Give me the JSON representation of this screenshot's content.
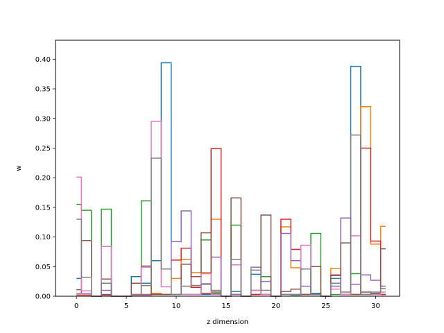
{
  "chart_data": {
    "type": "line",
    "drawstyle": "steps-mid",
    "xlabel": "z dimension",
    "ylabel": "w",
    "xlim": [
      -2.1,
      32.4
    ],
    "ylim": [
      0,
      0.432
    ],
    "xticks": [
      0,
      5,
      10,
      15,
      20,
      25,
      30
    ],
    "yticks": [
      0.0,
      0.05,
      0.1,
      0.15,
      0.2,
      0.25,
      0.3,
      0.35,
      0.4
    ],
    "ytick_labels": [
      "0.00",
      "0.05",
      "0.10",
      "0.15",
      "0.20",
      "0.25",
      "0.30",
      "0.35",
      "0.40"
    ],
    "x": [
      0,
      1,
      2,
      3,
      4,
      5,
      6,
      7,
      8,
      9,
      10,
      11,
      12,
      13,
      14,
      15,
      16,
      17,
      18,
      19,
      20,
      21,
      22,
      23,
      24,
      25,
      26,
      27,
      28,
      29,
      30,
      31
    ],
    "series": [
      {
        "color": "#1f77b4",
        "values": [
          0.03,
          0.005,
          0,
          0.003,
          0,
          0,
          0.033,
          0.022,
          0.06,
          0.394,
          0.003,
          0.003,
          0.003,
          0.003,
          0.003,
          0,
          0.008,
          0,
          0.037,
          0.003,
          0,
          0.003,
          0.002,
          0.003,
          0.005,
          0,
          0.03,
          0.003,
          0.388,
          0.003,
          0.003,
          0.003
        ]
      },
      {
        "color": "#ff7f0e",
        "values": [
          0.002,
          0.002,
          0,
          0.002,
          0,
          0,
          0.003,
          0.003,
          0.005,
          0.003,
          0.03,
          0.062,
          0.04,
          0.04,
          0.13,
          0,
          0.003,
          0,
          0.003,
          0.003,
          0,
          0.117,
          0.048,
          0.003,
          0.003,
          0,
          0.047,
          0.003,
          0.003,
          0.32,
          0.088,
          0.118
        ]
      },
      {
        "color": "#2ca02c",
        "values": [
          0.155,
          0.145,
          0,
          0.147,
          0,
          0,
          0.002,
          0.161,
          0.003,
          0.003,
          0.003,
          0.003,
          0.003,
          0.095,
          0.005,
          0,
          0.12,
          0,
          0.003,
          0.033,
          0,
          0.003,
          0.003,
          0.003,
          0.106,
          0,
          0.003,
          0.003,
          0.038,
          0.003,
          0.003,
          0.003
        ]
      },
      {
        "color": "#d62728",
        "values": [
          0.002,
          0.002,
          0,
          0.002,
          0,
          0,
          0.002,
          0.002,
          0.003,
          0.003,
          0.061,
          0.081,
          0.015,
          0.005,
          0.249,
          0,
          0.003,
          0,
          0.003,
          0.003,
          0,
          0.13,
          0.079,
          0.003,
          0.003,
          0,
          0.035,
          0.003,
          0.003,
          0.25,
          0.093,
          0.003
        ]
      },
      {
        "color": "#9467bd",
        "values": [
          0.005,
          0.005,
          0,
          0.01,
          0,
          0,
          0.003,
          0.003,
          0.003,
          0.003,
          0.092,
          0.144,
          0.018,
          0.021,
          0.066,
          0,
          0.003,
          0,
          0.049,
          0.025,
          0,
          0.106,
          0.06,
          0.017,
          0.003,
          0,
          0.017,
          0.132,
          0.02,
          0.036,
          0.027,
          0.017
        ]
      },
      {
        "color": "#8c564b",
        "values": [
          0.011,
          0.094,
          0,
          0.029,
          0,
          0,
          0.022,
          0.051,
          0.003,
          0.003,
          0.003,
          0.054,
          0.033,
          0.107,
          0.007,
          0,
          0.166,
          0,
          0.01,
          0.137,
          0,
          0.008,
          0.012,
          0.003,
          0.05,
          0,
          0.036,
          0.09,
          0.003,
          0.007,
          0.005,
          0.08
        ]
      },
      {
        "color": "#e377c2",
        "values": [
          0.201,
          0.009,
          0,
          0.084,
          0,
          0,
          0.003,
          0.049,
          0.295,
          0.016,
          0.003,
          0.003,
          0.003,
          0.038,
          0.003,
          0,
          0.053,
          0,
          0.01,
          0.003,
          0,
          0.003,
          0.003,
          0.086,
          0.003,
          0,
          0.012,
          0.003,
          0.102,
          0.003,
          0.003,
          0.007
        ]
      },
      {
        "color": "#7f7f7f",
        "values": [
          0.13,
          0.032,
          0,
          0.022,
          0,
          0,
          0.003,
          0.018,
          0.233,
          0.046,
          0.003,
          0.017,
          0.018,
          0.02,
          0.01,
          0,
          0.062,
          0,
          0.044,
          0.01,
          0,
          0.003,
          0.003,
          0.046,
          0.003,
          0,
          0.022,
          0.007,
          0.272,
          0.003,
          0.007,
          0.013
        ]
      }
    ]
  }
}
